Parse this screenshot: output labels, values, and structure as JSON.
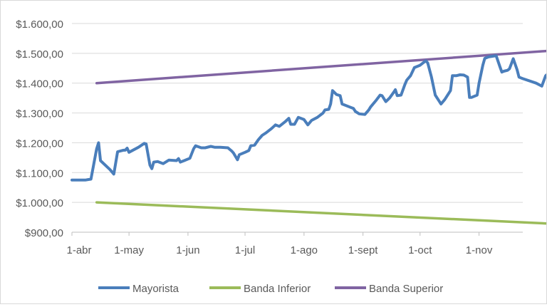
{
  "chart_data": {
    "type": "line",
    "title": "",
    "xlabel": "",
    "ylabel": "",
    "ylim": [
      900,
      1600
    ],
    "y_ticks": [
      900,
      1000,
      1100,
      1200,
      1300,
      1400,
      1500,
      1600
    ],
    "y_tick_labels": [
      "$900,00",
      "$1.000,00",
      "$1.100,00",
      "$1.200,00",
      "$1.300,00",
      "$1.400,00",
      "$1.500,00",
      "$1.600,00"
    ],
    "x_axis_dates": [
      "1-abr",
      "1-may",
      "1-jun",
      "1-jul",
      "1-ago",
      "1-sept",
      "1-oct",
      "1-nov"
    ],
    "x_range_dates": [
      "2025-04-01",
      "2025-11-24"
    ],
    "gridlines": "horizontal",
    "legend_position": "bottom",
    "series": [
      {
        "name": "Mayorista",
        "color": "#4a7ebb",
        "points": [
          [
            "2025-04-01",
            1075
          ],
          [
            "2025-04-08",
            1075
          ],
          [
            "2025-04-10",
            1077
          ],
          [
            "2025-04-11",
            1078
          ],
          [
            "2025-04-14",
            1180
          ],
          [
            "2025-04-15",
            1200
          ],
          [
            "2025-04-16",
            1140
          ],
          [
            "2025-04-21",
            1110
          ],
          [
            "2025-04-23",
            1095
          ],
          [
            "2025-04-25",
            1170
          ],
          [
            "2025-04-28",
            1175
          ],
          [
            "2025-04-29",
            1175
          ],
          [
            "2025-04-30",
            1182
          ],
          [
            "2025-05-01",
            1168
          ],
          [
            "2025-05-06",
            1185
          ],
          [
            "2025-05-09",
            1198
          ],
          [
            "2025-05-10",
            1196
          ],
          [
            "2025-05-12",
            1125
          ],
          [
            "2025-05-13",
            1113
          ],
          [
            "2025-05-14",
            1135
          ],
          [
            "2025-05-16",
            1137
          ],
          [
            "2025-05-19",
            1130
          ],
          [
            "2025-05-22",
            1142
          ],
          [
            "2025-05-26",
            1140
          ],
          [
            "2025-05-27",
            1147
          ],
          [
            "2025-05-28",
            1135
          ],
          [
            "2025-05-30",
            1140
          ],
          [
            "2025-06-02",
            1148
          ],
          [
            "2025-06-04",
            1180
          ],
          [
            "2025-06-05",
            1190
          ],
          [
            "2025-06-08",
            1183
          ],
          [
            "2025-06-10",
            1183
          ],
          [
            "2025-06-13",
            1188
          ],
          [
            "2025-06-15",
            1185
          ],
          [
            "2025-06-18",
            1185
          ],
          [
            "2025-06-22",
            1183
          ],
          [
            "2025-06-24",
            1172
          ],
          [
            "2025-06-25",
            1165
          ],
          [
            "2025-06-27",
            1143
          ],
          [
            "2025-06-28",
            1160
          ],
          [
            "2025-07-01",
            1168
          ],
          [
            "2025-07-03",
            1174
          ],
          [
            "2025-07-04",
            1190
          ],
          [
            "2025-07-06",
            1192
          ],
          [
            "2025-07-08",
            1210
          ],
          [
            "2025-07-10",
            1225
          ],
          [
            "2025-07-12",
            1233
          ],
          [
            "2025-07-15",
            1248
          ],
          [
            "2025-07-17",
            1260
          ],
          [
            "2025-07-19",
            1255
          ],
          [
            "2025-07-22",
            1270
          ],
          [
            "2025-07-24",
            1282
          ],
          [
            "2025-07-25",
            1262
          ],
          [
            "2025-07-27",
            1262
          ],
          [
            "2025-07-29",
            1285
          ],
          [
            "2025-08-01",
            1278
          ],
          [
            "2025-08-03",
            1260
          ],
          [
            "2025-08-05",
            1275
          ],
          [
            "2025-08-08",
            1285
          ],
          [
            "2025-08-11",
            1300
          ],
          [
            "2025-08-12",
            1310
          ],
          [
            "2025-08-14",
            1312
          ],
          [
            "2025-08-15",
            1330
          ],
          [
            "2025-08-16",
            1375
          ],
          [
            "2025-08-18",
            1362
          ],
          [
            "2025-08-20",
            1358
          ],
          [
            "2025-08-21",
            1330
          ],
          [
            "2025-08-25",
            1320
          ],
          [
            "2025-08-27",
            1315
          ],
          [
            "2025-08-28",
            1305
          ],
          [
            "2025-08-30",
            1297
          ],
          [
            "2025-09-02",
            1295
          ],
          [
            "2025-09-04",
            1310
          ],
          [
            "2025-09-05",
            1320
          ],
          [
            "2025-09-08",
            1343
          ],
          [
            "2025-09-10",
            1360
          ],
          [
            "2025-09-11",
            1358
          ],
          [
            "2025-09-13",
            1338
          ],
          [
            "2025-09-15",
            1350
          ],
          [
            "2025-09-17",
            1368
          ],
          [
            "2025-09-18",
            1378
          ],
          [
            "2025-09-19",
            1358
          ],
          [
            "2025-09-21",
            1360
          ],
          [
            "2025-09-23",
            1395
          ],
          [
            "2025-09-24",
            1410
          ],
          [
            "2025-09-26",
            1425
          ],
          [
            "2025-09-28",
            1452
          ],
          [
            "2025-10-01",
            1460
          ],
          [
            "2025-10-04",
            1475
          ],
          [
            "2025-10-05",
            1468
          ],
          [
            "2025-10-07",
            1420
          ],
          [
            "2025-10-09",
            1360
          ],
          [
            "2025-10-11",
            1340
          ],
          [
            "2025-10-12",
            1330
          ],
          [
            "2025-10-14",
            1345
          ],
          [
            "2025-10-17",
            1375
          ],
          [
            "2025-10-18",
            1425
          ],
          [
            "2025-10-20",
            1425
          ],
          [
            "2025-10-22",
            1428
          ],
          [
            "2025-10-24",
            1427
          ],
          [
            "2025-10-26",
            1420
          ],
          [
            "2025-10-27",
            1352
          ],
          [
            "2025-10-28",
            1352
          ],
          [
            "2025-10-31",
            1360
          ],
          [
            "2025-11-01",
            1400
          ],
          [
            "2025-11-03",
            1460
          ],
          [
            "2025-11-04",
            1483
          ],
          [
            "2025-11-06",
            1488
          ],
          [
            "2025-11-08",
            1490
          ],
          [
            "2025-11-10",
            1492
          ],
          [
            "2025-11-12",
            1455
          ],
          [
            "2025-11-13",
            1437
          ],
          [
            "2025-11-14",
            1440
          ],
          [
            "2025-11-16",
            1443
          ],
          [
            "2025-11-17",
            1448
          ],
          [
            "2025-11-18",
            1465
          ],
          [
            "2025-11-19",
            1482
          ],
          [
            "2025-11-21",
            1445
          ],
          [
            "2025-11-22",
            1420
          ],
          [
            "2025-11-24",
            1415
          ],
          [
            "2025-12-01",
            1400
          ],
          [
            "2025-12-04",
            1390
          ],
          [
            "2025-12-06",
            1425
          ],
          [
            "2025-12-11",
            1450
          ]
        ]
      },
      {
        "name": "Banda Inferior",
        "color": "#9bbb59",
        "points": [
          [
            "2025-04-14",
            1000
          ],
          [
            "2025-12-11",
            928
          ]
        ]
      },
      {
        "name": "Banda Superior",
        "color": "#8064a2",
        "points": [
          [
            "2025-04-14",
            1400
          ],
          [
            "2025-12-11",
            1510
          ]
        ]
      }
    ]
  }
}
